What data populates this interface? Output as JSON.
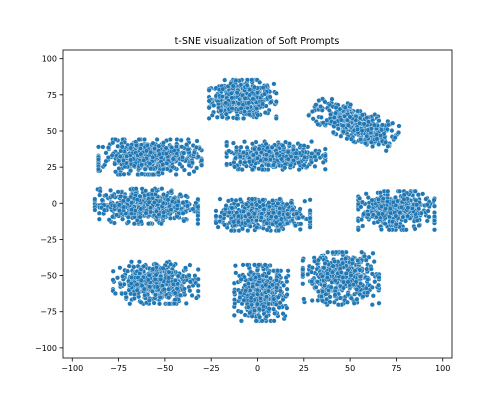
{
  "chart_data": {
    "type": "scatter",
    "title": "t-SNE visualization of Soft Prompts",
    "xlabel": "",
    "ylabel": "",
    "xlim": [
      -105,
      105
    ],
    "ylim": [
      -107,
      106
    ],
    "xticks": [
      -100,
      -75,
      -50,
      -25,
      0,
      25,
      50,
      75,
      100
    ],
    "yticks": [
      100,
      75,
      50,
      25,
      0,
      -25,
      -50,
      -75,
      -100
    ],
    "grid": false,
    "legend": "none",
    "marker_color": "#1f77b4",
    "marker_edge_color": "#ffffff",
    "clusters": [
      {
        "name": "upper-center",
        "center": [
          -8,
          72
        ],
        "spread": [
          15,
          11
        ],
        "count": 520
      },
      {
        "name": "upper-right",
        "center": [
          52,
          55
        ],
        "spread": [
          20,
          9
        ],
        "angle": -28,
        "count": 480
      },
      {
        "name": "upper-left",
        "center": [
          -58,
          32
        ],
        "spread": [
          23,
          10
        ],
        "count": 560
      },
      {
        "name": "center-upper",
        "center": [
          10,
          33
        ],
        "spread": [
          22,
          8
        ],
        "count": 480
      },
      {
        "name": "center-left",
        "center": [
          -60,
          -2
        ],
        "spread": [
          23,
          10
        ],
        "count": 560
      },
      {
        "name": "center",
        "center": [
          3,
          -8
        ],
        "spread": [
          21,
          9
        ],
        "count": 520
      },
      {
        "name": "center-right",
        "center": [
          75,
          -5
        ],
        "spread": [
          17,
          11
        ],
        "count": 460
      },
      {
        "name": "lower-left",
        "center": [
          -55,
          -55
        ],
        "spread": [
          19,
          12
        ],
        "count": 480
      },
      {
        "name": "lower-center",
        "center": [
          2,
          -62
        ],
        "spread": [
          12,
          16
        ],
        "count": 460
      },
      {
        "name": "lower-right",
        "center": [
          45,
          -52
        ],
        "spread": [
          17,
          15
        ],
        "count": 500
      }
    ]
  }
}
